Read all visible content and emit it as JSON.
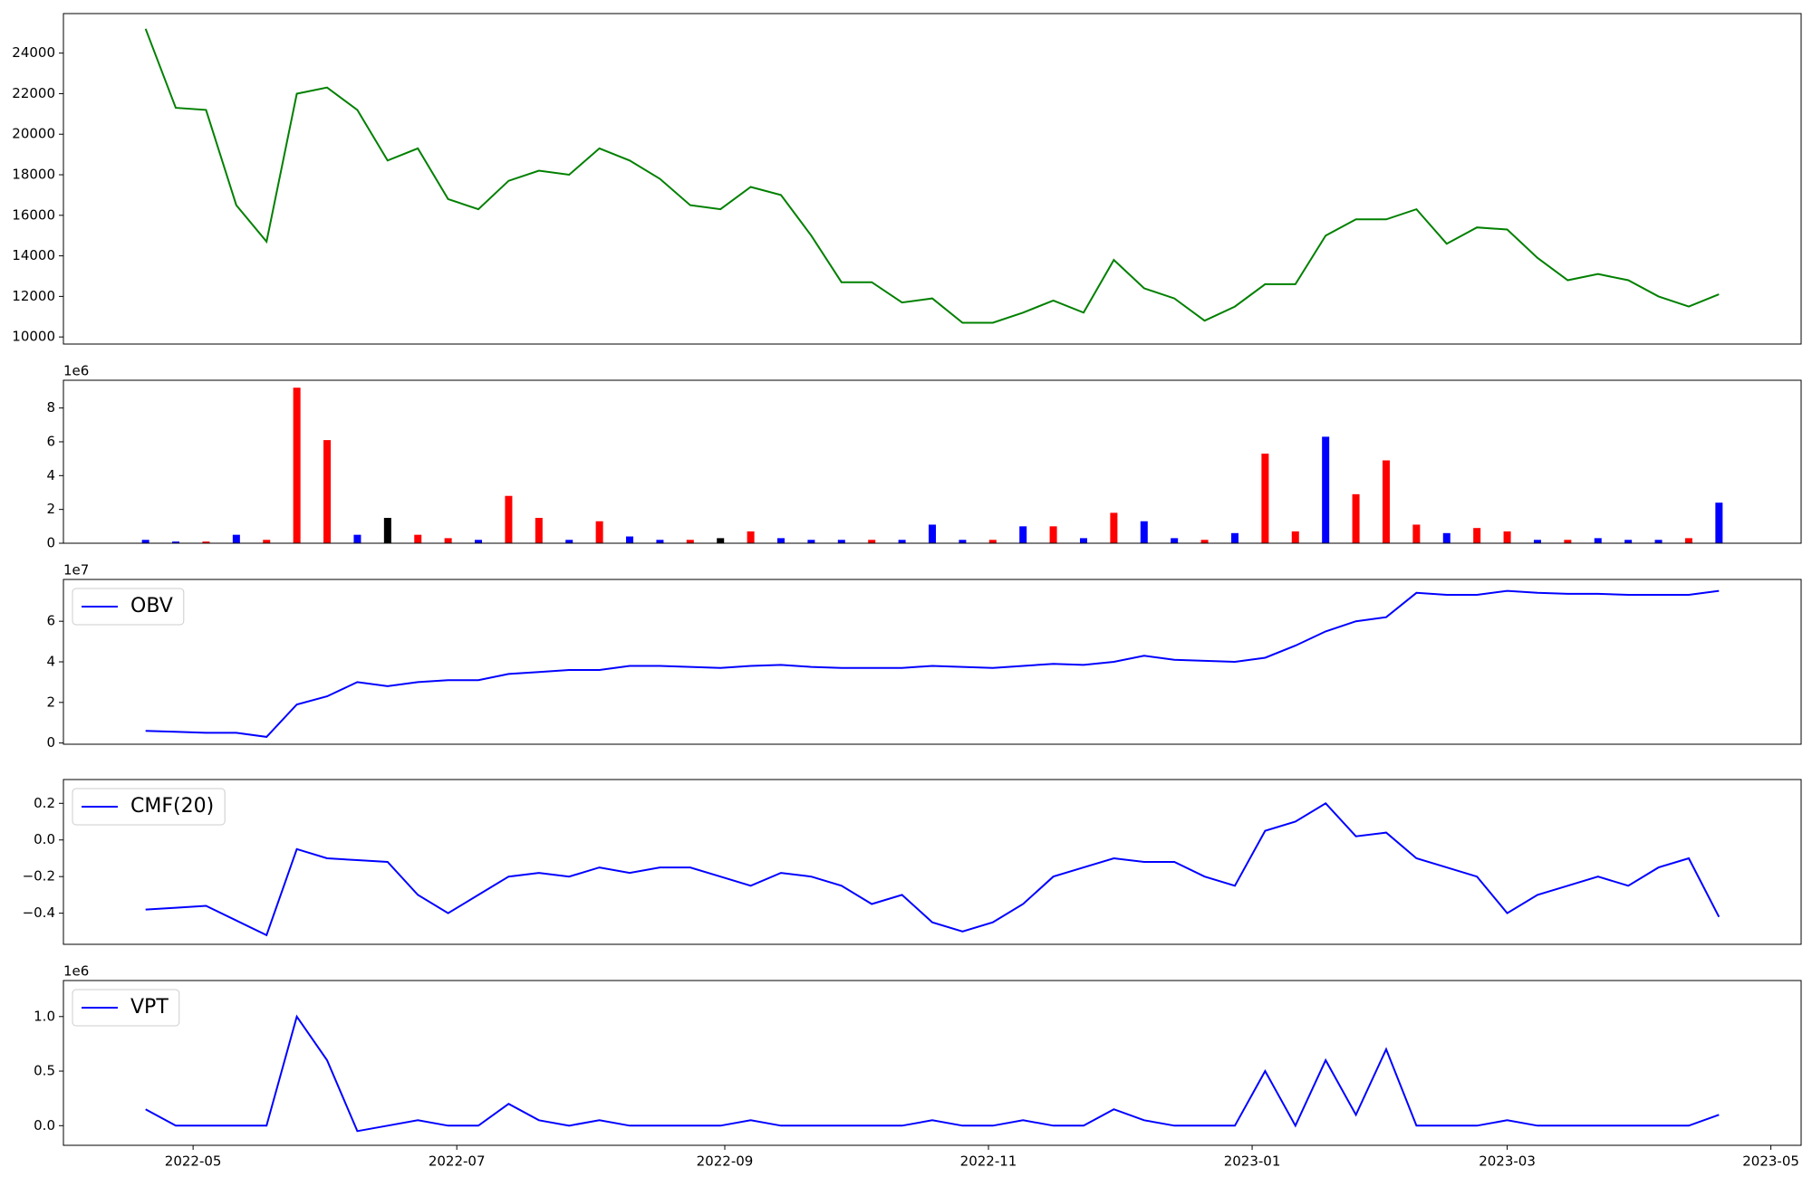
{
  "chart_data": [
    {
      "type": "line",
      "color": "#008000",
      "x": [
        "2022-04-20",
        "2022-04-27",
        "2022-05-04",
        "2022-05-11",
        "2022-05-18",
        "2022-05-25",
        "2022-06-01",
        "2022-06-08",
        "2022-06-15",
        "2022-06-22",
        "2022-06-29",
        "2022-07-06",
        "2022-07-13",
        "2022-07-20",
        "2022-07-27",
        "2022-08-03",
        "2022-08-10",
        "2022-08-17",
        "2022-08-24",
        "2022-08-31",
        "2022-09-07",
        "2022-09-14",
        "2022-09-21",
        "2022-09-28",
        "2022-10-05",
        "2022-10-12",
        "2022-10-19",
        "2022-10-26",
        "2022-11-02",
        "2022-11-09",
        "2022-11-16",
        "2022-11-23",
        "2022-11-30",
        "2022-12-07",
        "2022-12-14",
        "2022-12-21",
        "2022-12-28",
        "2023-01-04",
        "2023-01-11",
        "2023-01-18",
        "2023-01-25",
        "2023-02-01",
        "2023-02-08",
        "2023-02-15",
        "2023-02-22",
        "2023-03-01",
        "2023-03-08",
        "2023-03-15",
        "2023-03-22",
        "2023-03-29",
        "2023-04-05",
        "2023-04-12",
        "2023-04-19"
      ],
      "values": [
        25200,
        21300,
        21200,
        16500,
        14700,
        22000,
        22300,
        21200,
        18700,
        19300,
        16800,
        16300,
        17700,
        18200,
        18000,
        19300,
        18700,
        17800,
        16500,
        16300,
        17400,
        17000,
        15000,
        12700,
        12700,
        11700,
        11900,
        10700,
        10700,
        11200,
        11800,
        11200,
        13800,
        12400,
        11900,
        10800,
        11500,
        12600,
        12600,
        15000,
        15800,
        15800,
        16300,
        14600,
        15400,
        15300,
        13900,
        12800,
        13100,
        12800,
        12000,
        11500,
        12100
      ],
      "xlim": [
        "2022-04-01",
        "2023-05-08"
      ],
      "ylim": [
        9650,
        25950
      ],
      "yticks": [
        10000,
        12000,
        14000,
        16000,
        18000,
        20000,
        22000,
        24000
      ]
    },
    {
      "type": "bar",
      "offset_label": "1e6",
      "x": [
        "2022-04-20",
        "2022-04-27",
        "2022-05-04",
        "2022-05-11",
        "2022-05-18",
        "2022-05-25",
        "2022-06-01",
        "2022-06-08",
        "2022-06-15",
        "2022-06-22",
        "2022-06-29",
        "2022-07-06",
        "2022-07-13",
        "2022-07-20",
        "2022-07-27",
        "2022-08-03",
        "2022-08-10",
        "2022-08-17",
        "2022-08-24",
        "2022-08-31",
        "2022-09-07",
        "2022-09-14",
        "2022-09-21",
        "2022-09-28",
        "2022-10-05",
        "2022-10-12",
        "2022-10-19",
        "2022-10-26",
        "2022-11-02",
        "2022-11-09",
        "2022-11-16",
        "2022-11-23",
        "2022-11-30",
        "2022-12-07",
        "2022-12-14",
        "2022-12-21",
        "2022-12-28",
        "2023-01-04",
        "2023-01-11",
        "2023-01-18",
        "2023-01-25",
        "2023-02-01",
        "2023-02-08",
        "2023-02-15",
        "2023-02-22",
        "2023-03-01",
        "2023-03-08",
        "2023-03-15",
        "2023-03-22",
        "2023-03-29",
        "2023-04-05",
        "2023-04-12",
        "2023-04-19"
      ],
      "values": [
        0.2,
        0.1,
        0.1,
        0.5,
        0.2,
        9.2,
        6.1,
        0.5,
        1.5,
        0.5,
        0.3,
        0.2,
        2.8,
        1.5,
        0.2,
        1.3,
        0.4,
        0.2,
        0.2,
        0.3,
        0.7,
        0.3,
        0.2,
        0.2,
        0.2,
        0.2,
        1.1,
        0.2,
        0.2,
        1.0,
        1.0,
        0.3,
        1.8,
        1.3,
        0.3,
        0.2,
        0.6,
        5.3,
        0.7,
        6.3,
        2.9,
        4.9,
        1.1,
        0.6,
        0.9,
        0.7,
        0.2,
        0.2,
        0.3,
        0.2,
        0.2,
        0.3,
        2.4
      ],
      "colors": [
        "blue",
        "blue",
        "red",
        "blue",
        "red",
        "red",
        "red",
        "blue",
        "black",
        "red",
        "red",
        "blue",
        "red",
        "red",
        "blue",
        "red",
        "blue",
        "blue",
        "red",
        "black",
        "red",
        "blue",
        "blue",
        "blue",
        "red",
        "blue",
        "blue",
        "blue",
        "red",
        "blue",
        "red",
        "blue",
        "red",
        "blue",
        "blue",
        "red",
        "blue",
        "red",
        "red",
        "blue",
        "red",
        "red",
        "red",
        "blue",
        "red",
        "red",
        "blue",
        "red",
        "blue",
        "blue",
        "blue",
        "red",
        "blue"
      ],
      "xlim": [
        "2022-04-01",
        "2023-05-08"
      ],
      "ylim": [
        0,
        9.64
      ],
      "yticks": [
        0,
        2,
        4,
        6,
        8
      ]
    },
    {
      "type": "line",
      "offset_label": "1e7",
      "x": [
        "2022-04-20",
        "2022-04-27",
        "2022-05-04",
        "2022-05-11",
        "2022-05-18",
        "2022-05-25",
        "2022-06-01",
        "2022-06-08",
        "2022-06-15",
        "2022-06-22",
        "2022-06-29",
        "2022-07-06",
        "2022-07-13",
        "2022-07-20",
        "2022-07-27",
        "2022-08-03",
        "2022-08-10",
        "2022-08-17",
        "2022-08-24",
        "2022-08-31",
        "2022-09-07",
        "2022-09-14",
        "2022-09-21",
        "2022-09-28",
        "2022-10-05",
        "2022-10-12",
        "2022-10-19",
        "2022-10-26",
        "2022-11-02",
        "2022-11-09",
        "2022-11-16",
        "2022-11-23",
        "2022-11-30",
        "2022-12-07",
        "2022-12-14",
        "2022-12-21",
        "2022-12-28",
        "2023-01-04",
        "2023-01-11",
        "2023-01-18",
        "2023-01-25",
        "2023-02-01",
        "2023-02-08",
        "2023-02-15",
        "2023-02-22",
        "2023-03-01",
        "2023-03-08",
        "2023-03-15",
        "2023-03-22",
        "2023-03-29",
        "2023-04-05",
        "2023-04-12",
        "2023-04-19"
      ],
      "series": [
        {
          "name": "OBV",
          "color": "#0000ff",
          "values": [
            0.6,
            0.55,
            0.5,
            0.5,
            0.3,
            1.9,
            2.3,
            3.0,
            2.8,
            3.0,
            3.1,
            3.1,
            3.4,
            3.5,
            3.6,
            3.6,
            3.8,
            3.8,
            3.75,
            3.7,
            3.8,
            3.85,
            3.75,
            3.7,
            3.7,
            3.7,
            3.8,
            3.75,
            3.7,
            3.8,
            3.9,
            3.85,
            4.0,
            4.3,
            4.1,
            4.05,
            4.0,
            4.2,
            4.8,
            5.5,
            6.0,
            6.2,
            7.4,
            7.3,
            7.3,
            7.5,
            7.4,
            7.35,
            7.35,
            7.3,
            7.3,
            7.3,
            7.5
          ]
        }
      ],
      "legend": "upper left",
      "xlim": [
        "2022-04-01",
        "2023-05-08"
      ],
      "ylim": [
        -0.06,
        8.06
      ],
      "yticks": [
        0,
        2,
        4,
        6
      ]
    },
    {
      "type": "line",
      "x": [
        "2022-04-20",
        "2022-04-27",
        "2022-05-04",
        "2022-05-11",
        "2022-05-18",
        "2022-05-25",
        "2022-06-01",
        "2022-06-08",
        "2022-06-15",
        "2022-06-22",
        "2022-06-29",
        "2022-07-06",
        "2022-07-13",
        "2022-07-20",
        "2022-07-27",
        "2022-08-03",
        "2022-08-10",
        "2022-08-17",
        "2022-08-24",
        "2022-08-31",
        "2022-09-07",
        "2022-09-14",
        "2022-09-21",
        "2022-09-28",
        "2022-10-05",
        "2022-10-12",
        "2022-10-19",
        "2022-10-26",
        "2022-11-02",
        "2022-11-09",
        "2022-11-16",
        "2022-11-23",
        "2022-11-30",
        "2022-12-07",
        "2022-12-14",
        "2022-12-21",
        "2022-12-28",
        "2023-01-04",
        "2023-01-11",
        "2023-01-18",
        "2023-01-25",
        "2023-02-01",
        "2023-02-08",
        "2023-02-15",
        "2023-02-22",
        "2023-03-01",
        "2023-03-08",
        "2023-03-15",
        "2023-03-22",
        "2023-03-29",
        "2023-04-05",
        "2023-04-12",
        "2023-04-19"
      ],
      "series": [
        {
          "name": "CMF(20)",
          "color": "#0000ff",
          "values": [
            -0.38,
            -0.37,
            -0.36,
            -0.44,
            -0.52,
            -0.05,
            -0.1,
            -0.11,
            -0.12,
            -0.3,
            -0.4,
            -0.3,
            -0.2,
            -0.18,
            -0.2,
            -0.15,
            -0.18,
            -0.15,
            -0.15,
            -0.2,
            -0.25,
            -0.18,
            -0.2,
            -0.25,
            -0.35,
            -0.3,
            -0.45,
            -0.5,
            -0.45,
            -0.35,
            -0.2,
            -0.15,
            -0.1,
            -0.12,
            -0.12,
            -0.2,
            -0.25,
            0.05,
            0.1,
            0.2,
            0.02,
            0.04,
            -0.1,
            -0.15,
            -0.2,
            -0.4,
            -0.3,
            -0.25,
            -0.2,
            -0.25,
            -0.15,
            -0.1,
            -0.42
          ]
        }
      ],
      "legend": "upper left",
      "xlim": [
        "2022-04-01",
        "2023-05-08"
      ],
      "ylim": [
        -0.57,
        0.33
      ],
      "yticks": [
        {
          "value": -0.4,
          "label": "−0.4"
        },
        {
          "value": -0.2,
          "label": "−0.2"
        },
        {
          "value": 0,
          "label": "0.0"
        },
        0.2
      ]
    },
    {
      "type": "line",
      "offset_label": "1e6",
      "x": [
        "2022-04-20",
        "2022-04-27",
        "2022-05-04",
        "2022-05-11",
        "2022-05-18",
        "2022-05-25",
        "2022-06-01",
        "2022-06-08",
        "2022-06-15",
        "2022-06-22",
        "2022-06-29",
        "2022-07-06",
        "2022-07-13",
        "2022-07-20",
        "2022-07-27",
        "2022-08-03",
        "2022-08-10",
        "2022-08-17",
        "2022-08-24",
        "2022-08-31",
        "2022-09-07",
        "2022-09-14",
        "2022-09-21",
        "2022-09-28",
        "2022-10-05",
        "2022-10-12",
        "2022-10-19",
        "2022-10-26",
        "2022-11-02",
        "2022-11-09",
        "2022-11-16",
        "2022-11-23",
        "2022-11-30",
        "2022-12-07",
        "2022-12-14",
        "2022-12-21",
        "2022-12-28",
        "2023-01-04",
        "2023-01-11",
        "2023-01-18",
        "2023-01-25",
        "2023-02-01",
        "2023-02-08",
        "2023-02-15",
        "2023-02-22",
        "2023-03-01",
        "2023-03-08",
        "2023-03-15",
        "2023-03-22",
        "2023-03-29",
        "2023-04-05",
        "2023-04-12",
        "2023-04-19"
      ],
      "series": [
        {
          "name": "VPT",
          "color": "#0000ff",
          "values": [
            0.15,
            0,
            0,
            0,
            0,
            1.0,
            0.6,
            -0.05,
            0,
            0.05,
            0,
            0,
            0.2,
            0.05,
            0,
            0.05,
            0,
            0,
            0,
            0,
            0.05,
            0,
            0,
            0,
            0,
            0,
            0.05,
            0,
            0,
            0.05,
            0,
            0,
            0.15,
            0.05,
            0,
            0,
            0,
            0.5,
            0,
            0.6,
            0.1,
            0.7,
            0,
            0,
            0,
            0.05,
            0,
            0,
            0,
            0,
            0,
            0,
            0.1
          ]
        }
      ],
      "legend": "upper left",
      "xlim": [
        "2022-04-01",
        "2023-05-08"
      ],
      "ylim": [
        -0.18,
        1.33
      ],
      "yticks": [
        {
          "value": 0,
          "label": "0.0"
        },
        0.5,
        {
          "value": 1,
          "label": "1.0"
        }
      ],
      "xticks": [
        {
          "value": "2022-05-01",
          "label": "2022-05"
        },
        {
          "value": "2022-07-01",
          "label": "2022-07"
        },
        {
          "value": "2022-09-01",
          "label": "2022-09"
        },
        {
          "value": "2022-11-01",
          "label": "2022-11"
        },
        {
          "value": "2023-01-01",
          "label": "2023-01"
        },
        {
          "value": "2023-03-01",
          "label": "2023-03"
        },
        {
          "value": "2023-05-01",
          "label": "2023-05"
        }
      ]
    }
  ]
}
